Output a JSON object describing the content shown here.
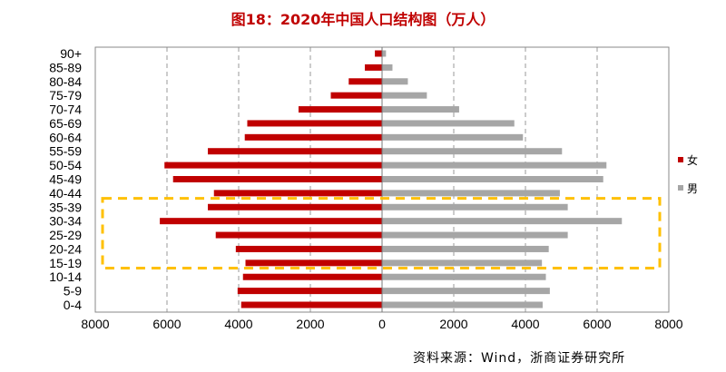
{
  "chart_data": {
    "type": "bar",
    "orientation": "horizontal-pyramid",
    "title": "图18：2020年中国人口结构图（万人）",
    "categories": [
      "90+",
      "85-89",
      "80-84",
      "75-79",
      "70-74",
      "65-69",
      "60-64",
      "55-59",
      "50-54",
      "45-49",
      "40-44",
      "35-39",
      "30-34",
      "25-29",
      "20-24",
      "15-19",
      "10-14",
      "5-9",
      "0-4"
    ],
    "series": [
      {
        "name": "女",
        "color": "#c00000",
        "side": "left",
        "values": [
          200,
          480,
          930,
          1430,
          2330,
          3760,
          3830,
          4860,
          6070,
          5830,
          4690,
          4860,
          6200,
          4640,
          4080,
          3810,
          3880,
          4030,
          3930
        ]
      },
      {
        "name": "男",
        "color": "#a6a6a6",
        "side": "right",
        "values": [
          110,
          290,
          720,
          1250,
          2150,
          3690,
          3930,
          5020,
          6260,
          6170,
          4960,
          5180,
          6690,
          5180,
          4650,
          4460,
          4570,
          4680,
          4480
        ]
      }
    ],
    "xlim": [
      -8000,
      8000
    ],
    "xticks": [
      -8000,
      -6000,
      -4000,
      -2000,
      0,
      2000,
      4000,
      6000,
      8000
    ],
    "xtick_labels": [
      "8000",
      "6000",
      "4000",
      "2000",
      "0",
      "2000",
      "4000",
      "6000",
      "8000"
    ],
    "grid": "vertical dashed",
    "legend": "right",
    "highlight": {
      "from": "15-19",
      "to": "35-39",
      "color": "#ffc000",
      "style": "dashed box"
    }
  },
  "source": "资料来源：Wind，浙商证券研究所"
}
